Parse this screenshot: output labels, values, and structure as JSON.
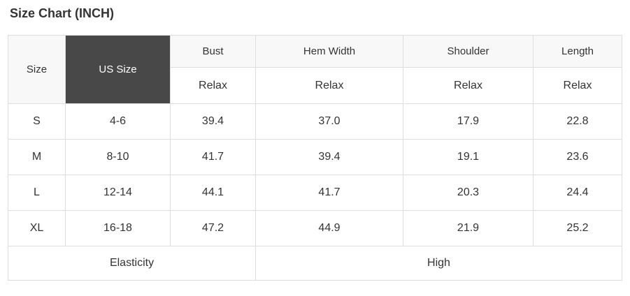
{
  "page": {
    "title": "Size Chart (INCH)"
  },
  "table": {
    "header": {
      "size_label": "Size",
      "us_size_label": "US Size",
      "measure_columns": [
        {
          "label": "Bust",
          "fit": "Relax"
        },
        {
          "label": "Hem Width",
          "fit": "Relax"
        },
        {
          "label": "Shoulder",
          "fit": "Relax"
        },
        {
          "label": "Length",
          "fit": "Relax"
        }
      ]
    },
    "rows": [
      {
        "size": "S",
        "us_size": "4-6",
        "bust": "39.4",
        "hem_width": "37.0",
        "shoulder": "17.9",
        "length": "22.8"
      },
      {
        "size": "M",
        "us_size": "8-10",
        "bust": "41.7",
        "hem_width": "39.4",
        "shoulder": "19.1",
        "length": "23.6"
      },
      {
        "size": "L",
        "us_size": "12-14",
        "bust": "44.1",
        "hem_width": "41.7",
        "shoulder": "20.3",
        "length": "24.4"
      },
      {
        "size": "XL",
        "us_size": "16-18",
        "bust": "47.2",
        "hem_width": "44.9",
        "shoulder": "21.9",
        "length": "25.2"
      }
    ],
    "footer": {
      "elasticity_label": "Elasticity",
      "elasticity_value": "High"
    },
    "colors": {
      "dark_header_bg": "#484848",
      "light_header_bg": "#f8f8f8",
      "border": "#dddddd",
      "text": "#333333"
    }
  }
}
